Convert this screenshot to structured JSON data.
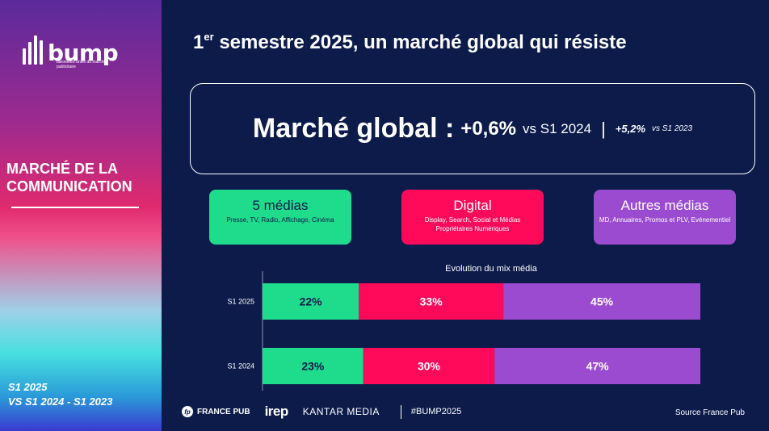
{
  "sidebar": {
    "logo_text": "bump",
    "logo_sub": "baromètre unifié du marché publicitaire",
    "section_title": "MARCHÉ DE LA COMMUNICATION",
    "period_line1": "S1 2025",
    "period_line2": "VS S1 2024 - S1 2023"
  },
  "header": {
    "title_num": "1",
    "title_sup": "er",
    "title_rest": " semestre 2025, un marché global qui résiste"
  },
  "headline": {
    "label": "Marché global :",
    "value": "+0,6%",
    "vs": "vs S1 2024",
    "sep": "|",
    "value2": "+5,2%",
    "vs2": "vs S1 2023"
  },
  "categories": [
    {
      "title": "5 médias",
      "desc": "Presse, TV, Radio, Affichage, Cinéma",
      "color": "#1fdc8c"
    },
    {
      "title": "Digital",
      "desc": "Display, Search, Social et Médias Propriétaires Numériques",
      "color": "#ff0a5a"
    },
    {
      "title": "Autres médias",
      "desc": "MD, Annuaires, Promos et PLV, Evénementiel",
      "color": "#9a4bd0"
    }
  ],
  "chart_data": {
    "type": "bar",
    "orientation": "horizontal",
    "stacked": true,
    "normalized": true,
    "title": "Evolution du mix média",
    "categories": [
      "S1 2025",
      "S1 2024"
    ],
    "series": [
      {
        "name": "5 médias",
        "values": [
          22,
          23
        ],
        "labels": [
          "22%",
          "23%"
        ],
        "color": "#1fdc8c"
      },
      {
        "name": "Digital",
        "values": [
          33,
          30
        ],
        "labels": [
          "33%",
          "30%"
        ],
        "color": "#ff0a5a"
      },
      {
        "name": "Autres médias",
        "values": [
          45,
          47
        ],
        "labels": [
          "45%",
          "47%"
        ],
        "color": "#9a4bd0"
      }
    ],
    "xlim": [
      0,
      100
    ],
    "grid": false
  },
  "footer": {
    "fp_mark": "fp",
    "france_pub": "FRANCE PUB",
    "irep": "irep",
    "kantar": "KANTAR MEDIA",
    "hashtag": "#BUMP2025",
    "source": "Source France Pub"
  }
}
